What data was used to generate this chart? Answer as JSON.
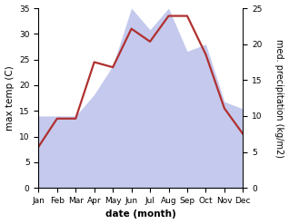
{
  "months": [
    "Jan",
    "Feb",
    "Mar",
    "Apr",
    "May",
    "Jun",
    "Jul",
    "Aug",
    "Sep",
    "Oct",
    "Nov",
    "Dec"
  ],
  "temperature": [
    8.0,
    13.5,
    13.5,
    24.5,
    23.5,
    31.0,
    28.5,
    33.5,
    33.5,
    26.0,
    15.5,
    10.5
  ],
  "precipitation": [
    10,
    10,
    10,
    13,
    17,
    25,
    22,
    25,
    19,
    20,
    12,
    11
  ],
  "temp_color": "#b03030",
  "precip_color": "#b0b8e8",
  "precip_alpha": 0.75,
  "temp_ylim": [
    0,
    35
  ],
  "precip_ylim": [
    0,
    25
  ],
  "temp_yticks": [
    0,
    5,
    10,
    15,
    20,
    25,
    30,
    35
  ],
  "precip_yticks": [
    0,
    5,
    10,
    15,
    20,
    25
  ],
  "xlabel": "date (month)",
  "ylabel_left": "max temp (C)",
  "ylabel_right": "med. precipitation (kg/m2)",
  "bg_color": "#ffffff",
  "label_fontsize": 7.5,
  "tick_fontsize": 6.5,
  "line_width": 1.6
}
